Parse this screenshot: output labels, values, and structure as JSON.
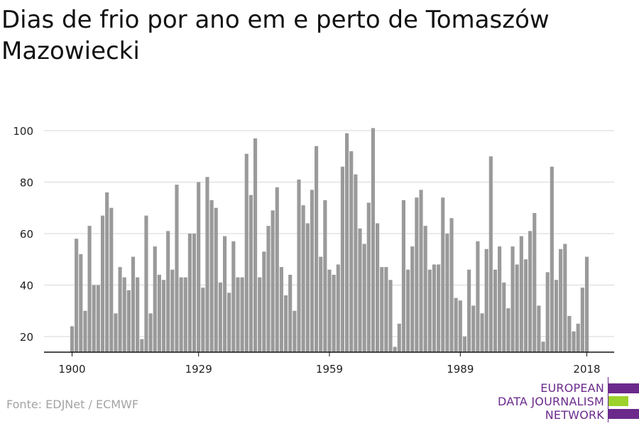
{
  "title": "Dias de frio por ano em e perto de Tomaszów Mazowiecki",
  "source": "Fonte: EDJNet / ECMWF",
  "logo": {
    "line1": "EUROPEAN",
    "line2": "DATA JOURNALISM",
    "line3": "NETWORK",
    "colors": {
      "purple": "#6b2a8b",
      "green": "#9bd22b"
    }
  },
  "chart_data": {
    "type": "bar",
    "title": "",
    "xlabel": "",
    "ylabel": "",
    "x_start": 1900,
    "x_end": 2018,
    "xticks": [
      1900,
      1929,
      1959,
      1989,
      2018
    ],
    "yticks": [
      20,
      40,
      60,
      80,
      100
    ],
    "ylim": [
      14,
      102
    ],
    "grid": true,
    "bar_color": "#9a9a9a",
    "values": [
      24,
      58,
      52,
      30,
      63,
      40,
      40,
      67,
      76,
      70,
      29,
      47,
      43,
      38,
      51,
      43,
      19,
      67,
      29,
      55,
      44,
      42,
      61,
      46,
      79,
      43,
      43,
      60,
      60,
      80,
      39,
      82,
      73,
      70,
      41,
      59,
      37,
      57,
      43,
      43,
      91,
      75,
      97,
      43,
      53,
      63,
      69,
      78,
      47,
      36,
      44,
      30,
      81,
      71,
      64,
      77,
      94,
      51,
      73,
      46,
      44,
      48,
      86,
      99,
      92,
      83,
      62,
      56,
      72,
      101,
      64,
      47,
      47,
      42,
      16,
      25,
      73,
      46,
      55,
      74,
      77,
      63,
      46,
      48,
      48,
      74,
      60,
      66,
      35,
      34,
      20,
      46,
      32,
      57,
      29,
      54,
      90,
      46,
      55,
      41,
      31,
      55,
      48,
      59,
      50,
      61,
      68,
      32,
      18,
      45,
      86,
      42,
      54,
      56,
      28,
      22,
      25,
      39,
      51
    ]
  }
}
